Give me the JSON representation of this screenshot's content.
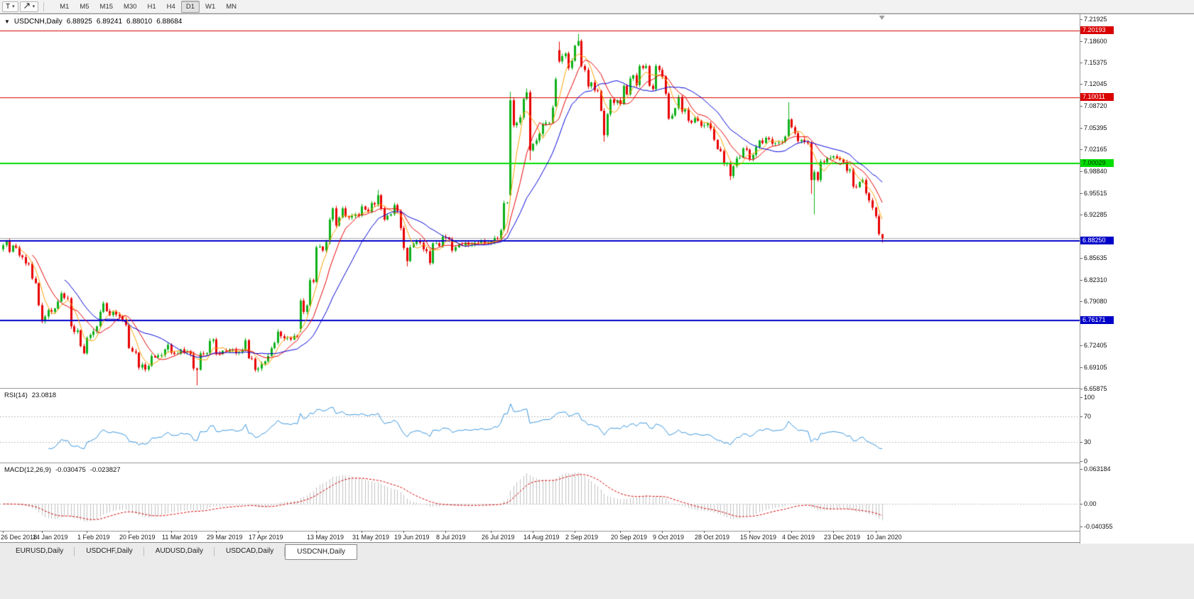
{
  "icons": {
    "collapse": "▼",
    "dropdown": "▾"
  },
  "toolbar": {
    "text_tool_label": "T",
    "timeframes": [
      "M1",
      "M5",
      "M15",
      "M30",
      "H1",
      "H4",
      "D1",
      "W1",
      "MN"
    ],
    "active_timeframe": "D1"
  },
  "window": {
    "title_symbol": "USDCNH,Daily",
    "ohlc": {
      "open": "6.88925",
      "high": "6.89241",
      "low": "6.88010",
      "close": "6.88684"
    }
  },
  "rsi_panel": {
    "name": "RSI(14)",
    "value": "23.0818",
    "axis_labels": [
      "100",
      "70",
      "30",
      "0"
    ],
    "levels": [
      70,
      30
    ],
    "line_color": "#3A96DD"
  },
  "macd_panel": {
    "name": "MACD(12,26,9)",
    "value_main": "-0.030475",
    "value_signal": "-0.023827",
    "axis_labels": [
      "0.063184",
      "0.00",
      "-0.040355"
    ],
    "histogram_color": "#C0C0C0",
    "signal_color": "#D40000"
  },
  "tabs": [
    {
      "label": "EURUSD,Daily",
      "active": false
    },
    {
      "label": "USDCHF,Daily",
      "active": false
    },
    {
      "label": "AUDUSD,Daily",
      "active": false
    },
    {
      "label": "USDCAD,Daily",
      "active": false
    },
    {
      "label": "USDCNH,Daily",
      "active": true
    }
  ],
  "chart_data": {
    "type": "candlestick",
    "symbol": "USDCNH",
    "timeframe": "Daily",
    "title": "USDCNH,Daily 6.88925 6.89241 6.88010 6.88684",
    "candle_colors": {
      "bull": "#0EB019",
      "bear": "#E80000"
    },
    "axis": {
      "top_price": 7.2255,
      "bottom_price": 6.6595
    },
    "price_ticks": [
      "7.21925",
      "7.18600",
      "7.15375",
      "7.12045",
      "7.08720",
      "7.05395",
      "7.02165",
      "6.98840",
      "6.95515",
      "6.92285",
      "6.85635",
      "6.82310",
      "6.79080",
      "6.72405",
      "6.69105",
      "6.65875"
    ],
    "horizontal_lines": [
      {
        "price": 7.20193,
        "label": "7.20193",
        "color": "#D90000",
        "text_color": "#ffffff",
        "width": 1
      },
      {
        "price": 7.10011,
        "label": "7.10011",
        "color": "#D90000",
        "text_color": "#ffffff",
        "width": 1
      },
      {
        "price": 7.00029,
        "label": "7.00029",
        "color": "#00DD00",
        "text_color": "#003300",
        "width": 2
      },
      {
        "price": 6.8825,
        "label": "6.88250",
        "color": "#0000C8",
        "text_color": "#ffffff",
        "width": 2
      },
      {
        "price": 6.76171,
        "label": "6.76171",
        "color": "#0000C8",
        "text_color": "#ffffff",
        "width": 2
      }
    ],
    "bid_price": 6.88684,
    "moving_averages": [
      {
        "period": 5,
        "color": "#FFA000"
      },
      {
        "period": 10,
        "color": "#E80000"
      },
      {
        "period": 20,
        "color": "#0000D8"
      }
    ],
    "first_open": 6.87,
    "closes": [
      6.876,
      6.882,
      6.866,
      6.8755,
      6.8725,
      6.8605,
      6.858,
      6.8485,
      6.848,
      6.8255,
      6.8185,
      6.785,
      6.7605,
      6.768,
      6.7775,
      6.775,
      6.78,
      6.7905,
      6.803,
      6.796,
      6.7955,
      6.753,
      6.7445,
      6.747,
      6.723,
      6.712,
      6.7355,
      6.74,
      6.7455,
      6.753,
      6.775,
      6.788,
      6.776,
      6.77,
      6.775,
      6.771,
      6.768,
      6.763,
      6.755,
      6.72,
      6.715,
      6.713,
      6.6905,
      6.695,
      6.6875,
      6.693,
      6.708,
      6.706,
      6.709,
      6.7095,
      6.718,
      6.725,
      6.713,
      6.711,
      6.7115,
      6.718,
      6.714,
      6.715,
      6.711,
      6.689,
      6.687,
      6.712,
      6.711,
      6.7125,
      6.731,
      6.733,
      6.712,
      6.711,
      6.716,
      6.715,
      6.717,
      6.7175,
      6.713,
      6.714,
      6.717,
      6.732,
      6.7045,
      6.704,
      6.687,
      6.689,
      6.696,
      6.7,
      6.708,
      6.72,
      6.728,
      6.745,
      6.738,
      6.735,
      6.7355,
      6.733,
      6.7385,
      6.737,
      6.792,
      6.775,
      6.785,
      6.823,
      6.8205,
      6.873,
      6.874,
      6.868,
      6.881,
      6.915,
      6.932,
      6.906,
      6.918,
      6.932,
      6.92,
      6.918,
      6.9205,
      6.923,
      6.921,
      6.935,
      6.93,
      6.927,
      6.94,
      6.938,
      6.952,
      6.932,
      6.915,
      6.921,
      6.923,
      6.937,
      6.928,
      6.902,
      6.872,
      6.852,
      6.873,
      6.878,
      6.883,
      6.88,
      6.87,
      6.867,
      6.849,
      6.879,
      6.879,
      6.875,
      6.889,
      6.888,
      6.885,
      6.868,
      6.873,
      6.877,
      6.876,
      6.88,
      6.877,
      6.8775,
      6.88,
      6.879,
      6.883,
      6.879,
      6.88,
      6.881,
      6.887,
      6.886,
      6.899,
      6.94,
      6.9405,
      7.096,
      7.058,
      7.062,
      7.07,
      7.098,
      7.108,
      7.02,
      7.03,
      7.035,
      7.045,
      7.06,
      7.062,
      7.062,
      7.085,
      7.128,
      7.155,
      7.163,
      7.167,
      7.145,
      7.156,
      7.179,
      7.186,
      7.148,
      7.142,
      7.117,
      7.123,
      7.111,
      7.11,
      7.08,
      7.043,
      7.075,
      7.097,
      7.092,
      7.096,
      7.09,
      7.118,
      7.105,
      7.129,
      7.134,
      7.119,
      7.148,
      7.145,
      7.148,
      7.118,
      7.113,
      7.148,
      7.142,
      7.132,
      7.106,
      7.068,
      7.073,
      7.084,
      7.101,
      7.079,
      7.082,
      7.065,
      7.062,
      7.069,
      7.065,
      7.057,
      7.058,
      7.061,
      7.053,
      7.036,
      7.022,
      7.019,
      6.999,
      7.0,
      6.981,
      6.996,
      7.008,
      7.009,
      7.023,
      7.021,
      7.007,
      7.013,
      7.025,
      7.035,
      7.031,
      7.039,
      7.037,
      7.03,
      7.031,
      7.032,
      7.033,
      7.041,
      7.067,
      7.055,
      7.046,
      7.034,
      7.036,
      7.033,
      7.031,
      6.975,
      6.987,
      6.975,
      7.003,
      7.002,
      7.008,
      7.009,
      7.011,
      7.008,
      7.006,
      7.002,
      6.989,
      6.991,
      6.965,
      6.964,
      6.972,
      6.975,
      6.955,
      6.944,
      6.933,
      6.92,
      6.893,
      6.8868
    ],
    "overrides": {
      "60": {
        "l": 6.6635
      },
      "92": {
        "o": 6.749,
        "l": 6.744
      },
      "116": {
        "h": 6.96
      },
      "125": {
        "l": 6.844
      },
      "157": {
        "o": 6.952,
        "h": 7.109,
        "l": 6.95
      },
      "162": {
        "h": 7.114
      },
      "163": {
        "l": 7.005
      },
      "171": {
        "o": 7.087
      },
      "172": {
        "o": 7.172,
        "h": 7.185
      },
      "178": {
        "h": 7.1965
      },
      "186": {
        "l": 7.033
      },
      "225": {
        "l": 6.975
      },
      "243": {
        "h": 7.093
      },
      "250": {
        "l": 6.954
      },
      "251": {
        "l": 6.923
      },
      "272": {
        "h": 6.8924,
        "l": 6.8801
      }
    },
    "date_labels": [
      {
        "i": 0,
        "t": "26 Dec 2018"
      },
      {
        "i": 12,
        "t": "14 Jan 2019"
      },
      {
        "i": 26,
        "t": "1 Feb 2019"
      },
      {
        "i": 39,
        "t": "20 Feb 2019"
      },
      {
        "i": 52,
        "t": "11 Mar 2019"
      },
      {
        "i": 66,
        "t": "29 Mar 2019"
      },
      {
        "i": 79,
        "t": "17 Apr 2019"
      },
      {
        "i": 97,
        "t": "13 May 2019"
      },
      {
        "i": 111,
        "t": "31 May 2019"
      },
      {
        "i": 124,
        "t": "19 Jun 2019"
      },
      {
        "i": 137,
        "t": "8 Jul 2019"
      },
      {
        "i": 151,
        "t": "26 Jul 2019"
      },
      {
        "i": 164,
        "t": "14 Aug 2019"
      },
      {
        "i": 177,
        "t": "2 Sep 2019"
      },
      {
        "i": 191,
        "t": "20 Sep 2019"
      },
      {
        "i": 204,
        "t": "9 Oct 2019"
      },
      {
        "i": 217,
        "t": "28 Oct 2019"
      },
      {
        "i": 231,
        "t": "15 Nov 2019"
      },
      {
        "i": 244,
        "t": "4 Dec 2019"
      },
      {
        "i": 257,
        "t": "23 Dec 2019"
      },
      {
        "i": 270,
        "t": "10 Jan 2020"
      }
    ]
  }
}
